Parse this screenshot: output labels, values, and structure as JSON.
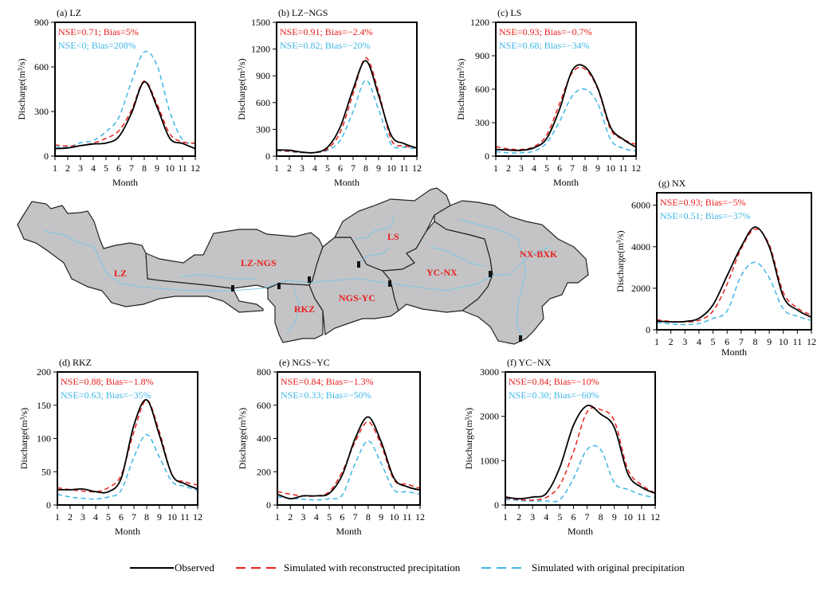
{
  "colors": {
    "observed": "#000000",
    "reconstructed": "#e8201e",
    "original": "#3fb6e4",
    "basin_fill": "#c4c4c6",
    "river": "#7fc6e6",
    "region_label": "#e8201e"
  },
  "legend": {
    "items": [
      {
        "key": "observed",
        "label": "Observed",
        "style": "solid"
      },
      {
        "key": "reconstructed",
        "label": "Simulated with reconstructed precipitation",
        "style": "dashed"
      },
      {
        "key": "original",
        "label": "Simulated with original precipitation",
        "style": "dashed"
      }
    ],
    "placement": "bottom"
  },
  "map": {
    "region_labels": [
      "LZ",
      "LZ-NGS",
      "LS",
      "RKZ",
      "NGS-YC",
      "YC-NX",
      "NX-BXK"
    ]
  },
  "chart_data": [
    {
      "id": "a",
      "type": "line",
      "title": "(a) LZ",
      "xlabel": "Month",
      "ylabel": "Discharge(m³/s)",
      "x": [
        1,
        2,
        3,
        4,
        5,
        6,
        7,
        8,
        9,
        10,
        11,
        12
      ],
      "xticks": [
        "1",
        "2",
        "3",
        "4",
        "5",
        "6",
        "7",
        "8",
        "9",
        "10",
        "11",
        "12"
      ],
      "ylim": [
        0,
        900
      ],
      "yticks": [
        0,
        300,
        600,
        900
      ],
      "stats": {
        "reconstructed": "NSE=0.71; Bias=5%",
        "original": "NSE<0; Bias=208%"
      },
      "series": [
        {
          "name": "Observed",
          "key": "observed",
          "values": [
            50,
            55,
            70,
            82,
            88,
            130,
            290,
            500,
            330,
            120,
            85,
            50
          ]
        },
        {
          "name": "Simulated with reconstructed precipitation",
          "key": "reconstructed",
          "values": [
            75,
            68,
            72,
            88,
            120,
            170,
            310,
            505,
            350,
            150,
            95,
            88
          ]
        },
        {
          "name": "Simulated with original precipitation",
          "key": "original",
          "values": [
            62,
            60,
            90,
            105,
            165,
            260,
            500,
            700,
            610,
            300,
            110,
            85
          ]
        }
      ]
    },
    {
      "id": "b",
      "type": "line",
      "title": "(b) LZ−NGS",
      "xlabel": "Month",
      "ylabel": "Discharge(m³/s)",
      "x": [
        1,
        2,
        3,
        4,
        5,
        6,
        7,
        8,
        9,
        10,
        11,
        12
      ],
      "xticks": [
        "1",
        "2",
        "3",
        "4",
        "5",
        "6",
        "7",
        "8",
        "9",
        "10",
        "11",
        "12"
      ],
      "ylim": [
        0,
        1500
      ],
      "yticks": [
        0,
        300,
        600,
        900,
        1200,
        1500
      ],
      "stats": {
        "reconstructed": "NSE=0.91; Bias=−2.4%",
        "original": "NSE=0.82; Bias=−20%"
      },
      "series": [
        {
          "name": "Observed",
          "key": "observed",
          "values": [
            70,
            65,
            45,
            40,
            100,
            330,
            750,
            1070,
            680,
            230,
            140,
            90
          ]
        },
        {
          "name": "Simulated with reconstructed precipitation",
          "key": "reconstructed",
          "values": [
            65,
            55,
            42,
            42,
            80,
            270,
            700,
            1100,
            720,
            180,
            115,
            95
          ]
        },
        {
          "name": "Simulated with original precipitation",
          "key": "original",
          "values": [
            60,
            50,
            38,
            38,
            65,
            180,
            500,
            850,
            520,
            130,
            100,
            80
          ]
        }
      ]
    },
    {
      "id": "c",
      "type": "line",
      "title": "(c) LS",
      "xlabel": "Month",
      "ylabel": "Discharge(m³/s)",
      "x": [
        1,
        2,
        3,
        4,
        5,
        6,
        7,
        8,
        9,
        10,
        11,
        12
      ],
      "xticks": [
        "1",
        "2",
        "3",
        "4",
        "5",
        "6",
        "7",
        "8",
        "9",
        "10",
        "11",
        "12"
      ],
      "ylim": [
        0,
        1200
      ],
      "yticks": [
        0,
        300,
        600,
        900,
        1200
      ],
      "stats": {
        "reconstructed": "NSE=0.93; Bias=−0.7%",
        "original": "NSE=0.68; Bias=−34%"
      },
      "series": [
        {
          "name": "Observed",
          "key": "observed",
          "values": [
            60,
            55,
            52,
            75,
            160,
            420,
            770,
            800,
            610,
            260,
            150,
            80
          ]
        },
        {
          "name": "Simulated with reconstructed precipitation",
          "key": "reconstructed",
          "values": [
            85,
            65,
            60,
            85,
            190,
            470,
            750,
            780,
            600,
            240,
            150,
            105
          ]
        },
        {
          "name": "Simulated with original precipitation",
          "key": "original",
          "values": [
            40,
            30,
            30,
            45,
            120,
            310,
            540,
            600,
            470,
            150,
            70,
            45
          ]
        }
      ]
    },
    {
      "id": "g",
      "type": "line",
      "title": "(g) NX",
      "xlabel": "Month",
      "ylabel": "Discharge(m³/s)",
      "x": [
        1,
        2,
        3,
        4,
        5,
        6,
        7,
        8,
        9,
        10,
        11,
        12
      ],
      "xticks": [
        "1",
        "2",
        "3",
        "4",
        "5",
        "6",
        "7",
        "8",
        "9",
        "10",
        "11",
        "12"
      ],
      "ylim": [
        0,
        6600
      ],
      "yticks": [
        0,
        2000,
        4000,
        6000
      ],
      "stats": {
        "reconstructed": "NSE=0.93; Bias=−5%",
        "original": "NSE=0.51; Bias=−37%"
      },
      "series": [
        {
          "name": "Observed",
          "key": "observed",
          "values": [
            420,
            380,
            400,
            550,
            1200,
            2600,
            4000,
            4950,
            4000,
            1600,
            950,
            600
          ]
        },
        {
          "name": "Simulated with reconstructed precipitation",
          "key": "reconstructed",
          "values": [
            480,
            400,
            380,
            450,
            900,
            2200,
            3900,
            4850,
            4100,
            1800,
            1050,
            700
          ]
        },
        {
          "name": "Simulated with original precipitation",
          "key": "original",
          "values": [
            350,
            280,
            250,
            300,
            550,
            900,
            2600,
            3250,
            2500,
            1000,
            650,
            450
          ]
        }
      ]
    },
    {
      "id": "d",
      "type": "line",
      "title": "(d) RKZ",
      "xlabel": "Month",
      "ylabel": "Discharge(m³/s)",
      "x": [
        1,
        2,
        3,
        4,
        5,
        6,
        7,
        8,
        9,
        10,
        11,
        12
      ],
      "xticks": [
        "1",
        "2",
        "3",
        "4",
        "5",
        "6",
        "7",
        "8",
        "9",
        "10",
        "11",
        "12"
      ],
      "ylim": [
        0,
        200
      ],
      "yticks": [
        0,
        50,
        100,
        150,
        200
      ],
      "stats": {
        "reconstructed": "NSE=0.88; Bias=−1.8%",
        "original": "NSE=0.63; Bias=−35%"
      },
      "series": [
        {
          "name": "Observed",
          "key": "observed",
          "values": [
            23,
            23,
            24,
            20,
            20,
            40,
            120,
            158,
            105,
            45,
            32,
            24
          ]
        },
        {
          "name": "Simulated with reconstructed precipitation",
          "key": "reconstructed",
          "values": [
            26,
            23,
            21,
            20,
            26,
            45,
            110,
            158,
            110,
            45,
            35,
            30
          ]
        },
        {
          "name": "Simulated with original precipitation",
          "key": "original",
          "values": [
            16,
            12,
            10,
            9,
            12,
            22,
            72,
            106,
            72,
            35,
            28,
            22
          ]
        }
      ]
    },
    {
      "id": "e",
      "type": "line",
      "title": "(e) NGS−YC",
      "xlabel": "Month",
      "ylabel": "Discharge(m³/s)",
      "x": [
        1,
        2,
        3,
        4,
        5,
        6,
        7,
        8,
        9,
        10,
        11,
        12
      ],
      "xticks": [
        "1",
        "2",
        "3",
        "4",
        "5",
        "6",
        "7",
        "8",
        "9",
        "10",
        "11",
        "12"
      ],
      "ylim": [
        0,
        800
      ],
      "yticks": [
        0,
        200,
        400,
        600,
        800
      ],
      "stats": {
        "reconstructed": "NSE=0.84; Bias=−1.3%",
        "original": "NSE=0.33; Bias=−50%"
      },
      "series": [
        {
          "name": "Observed",
          "key": "observed",
          "values": [
            65,
            38,
            55,
            55,
            70,
            180,
            400,
            530,
            380,
            160,
            110,
            90
          ]
        },
        {
          "name": "Simulated with reconstructed precipitation",
          "key": "reconstructed",
          "values": [
            80,
            65,
            55,
            55,
            80,
            200,
            380,
            500,
            360,
            150,
            125,
            100
          ]
        },
        {
          "name": "Simulated with original precipitation",
          "key": "original",
          "values": [
            50,
            40,
            35,
            30,
            38,
            60,
            250,
            385,
            250,
            90,
            80,
            65
          ]
        }
      ]
    },
    {
      "id": "f",
      "type": "line",
      "title": "(f) YC−NX",
      "xlabel": "Month",
      "ylabel": "Discharge(m³/s)",
      "x": [
        1,
        2,
        3,
        4,
        5,
        6,
        7,
        8,
        9,
        10,
        11,
        12
      ],
      "xticks": [
        "1",
        "2",
        "3",
        "4",
        "5",
        "6",
        "7",
        "8",
        "9",
        "10",
        "11",
        "12"
      ],
      "ylim": [
        0,
        3000
      ],
      "yticks": [
        0,
        1000,
        2000,
        3000
      ],
      "stats": {
        "reconstructed": "NSE=0.84; Bias=−10%",
        "original": "NSE=0.30; Bias=−60%"
      },
      "series": [
        {
          "name": "Observed",
          "key": "observed",
          "values": [
            180,
            140,
            180,
            260,
            850,
            1800,
            2240,
            2050,
            1750,
            700,
            400,
            260
          ]
        },
        {
          "name": "Simulated with reconstructed precipitation",
          "key": "reconstructed",
          "values": [
            160,
            120,
            110,
            170,
            450,
            1200,
            2100,
            2150,
            1900,
            800,
            450,
            270
          ]
        },
        {
          "name": "Simulated with original precipitation",
          "key": "original",
          "values": [
            130,
            100,
            90,
            90,
            120,
            600,
            1250,
            1250,
            500,
            350,
            230,
            170
          ]
        }
      ]
    }
  ]
}
